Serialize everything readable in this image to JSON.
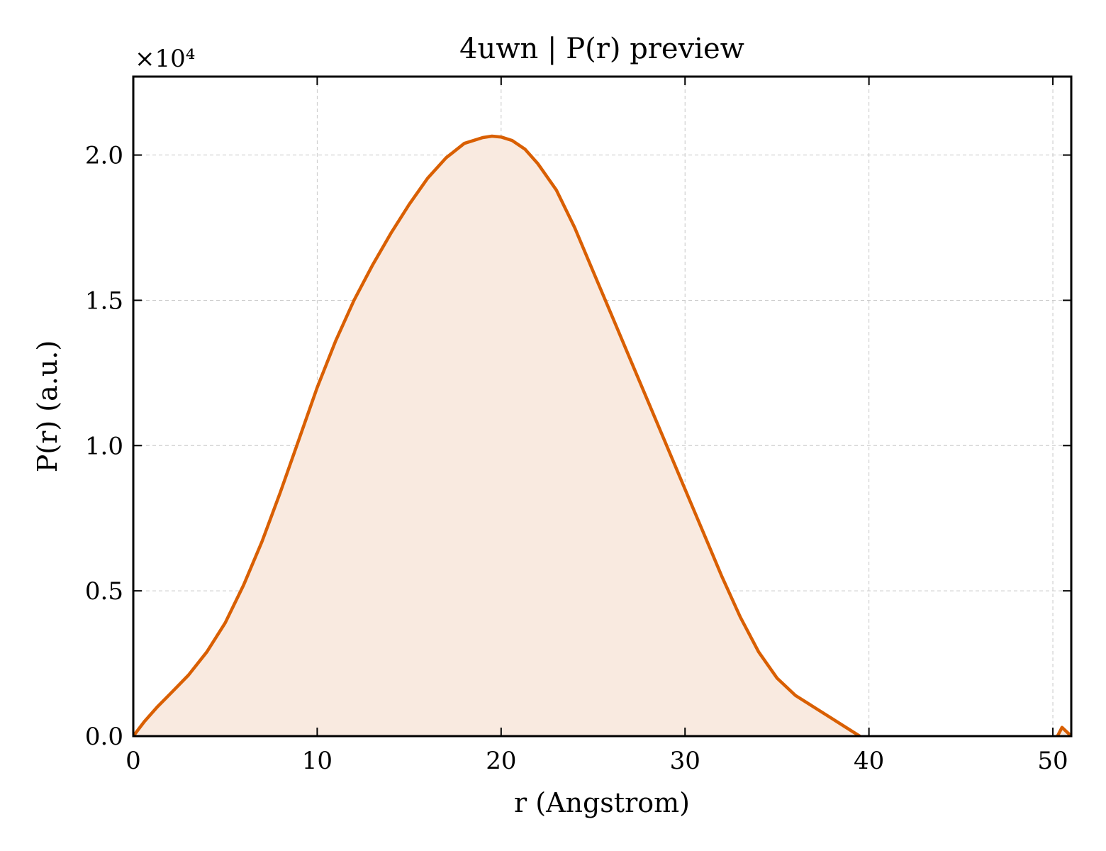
{
  "chart_data": {
    "type": "line",
    "title": "4uwn | P(r) preview",
    "xlabel": "r (Angstrom)",
    "ylabel": "P(r) (a.u.)",
    "y_offset_text": "×10⁴",
    "xlim": [
      0,
      51
    ],
    "ylim": [
      0,
      2.27
    ],
    "x_ticks": [
      "0",
      "10",
      "20",
      "30",
      "40",
      "50"
    ],
    "y_ticks": [
      "0.0",
      "0.5",
      "1.0",
      "1.5",
      "2.0"
    ],
    "grid": true,
    "line_color": "#d95f02",
    "fill_color": "#f9eae0",
    "series": [
      {
        "x": [
          0,
          0.6,
          1.3,
          2,
          3,
          4,
          5,
          6,
          7,
          8,
          9,
          10,
          11,
          12,
          13,
          14,
          15,
          16,
          17,
          18,
          19,
          19.5,
          20,
          20.6,
          21.3,
          22,
          23,
          24,
          25,
          26,
          27,
          28,
          29,
          30,
          31,
          32,
          33,
          34,
          35,
          36,
          37,
          38,
          39,
          40,
          41,
          42,
          43,
          44,
          45,
          46,
          47,
          48,
          49,
          49.5,
          50,
          50.5,
          51
        ],
        "y": [
          0,
          0.05,
          0.1,
          0.145,
          0.21,
          0.29,
          0.39,
          0.52,
          0.67,
          0.84,
          1.02,
          1.2,
          1.36,
          1.5,
          1.62,
          1.73,
          1.83,
          1.92,
          1.99,
          2.04,
          2.06,
          2.065,
          2.062,
          2.05,
          2.02,
          1.97,
          1.88,
          1.75,
          1.6,
          1.45,
          1.3,
          1.15,
          1.0,
          0.85,
          0.7,
          0.55,
          0.41,
          0.29,
          0.2,
          0.14,
          0.1,
          0.06,
          0.02,
          -0.02,
          -0.07,
          -0.11,
          -0.135,
          -0.14,
          -0.135,
          -0.14,
          -0.17,
          -0.21,
          -0.21,
          -0.15,
          -0.03,
          0.03,
          0
        ]
      }
    ]
  }
}
